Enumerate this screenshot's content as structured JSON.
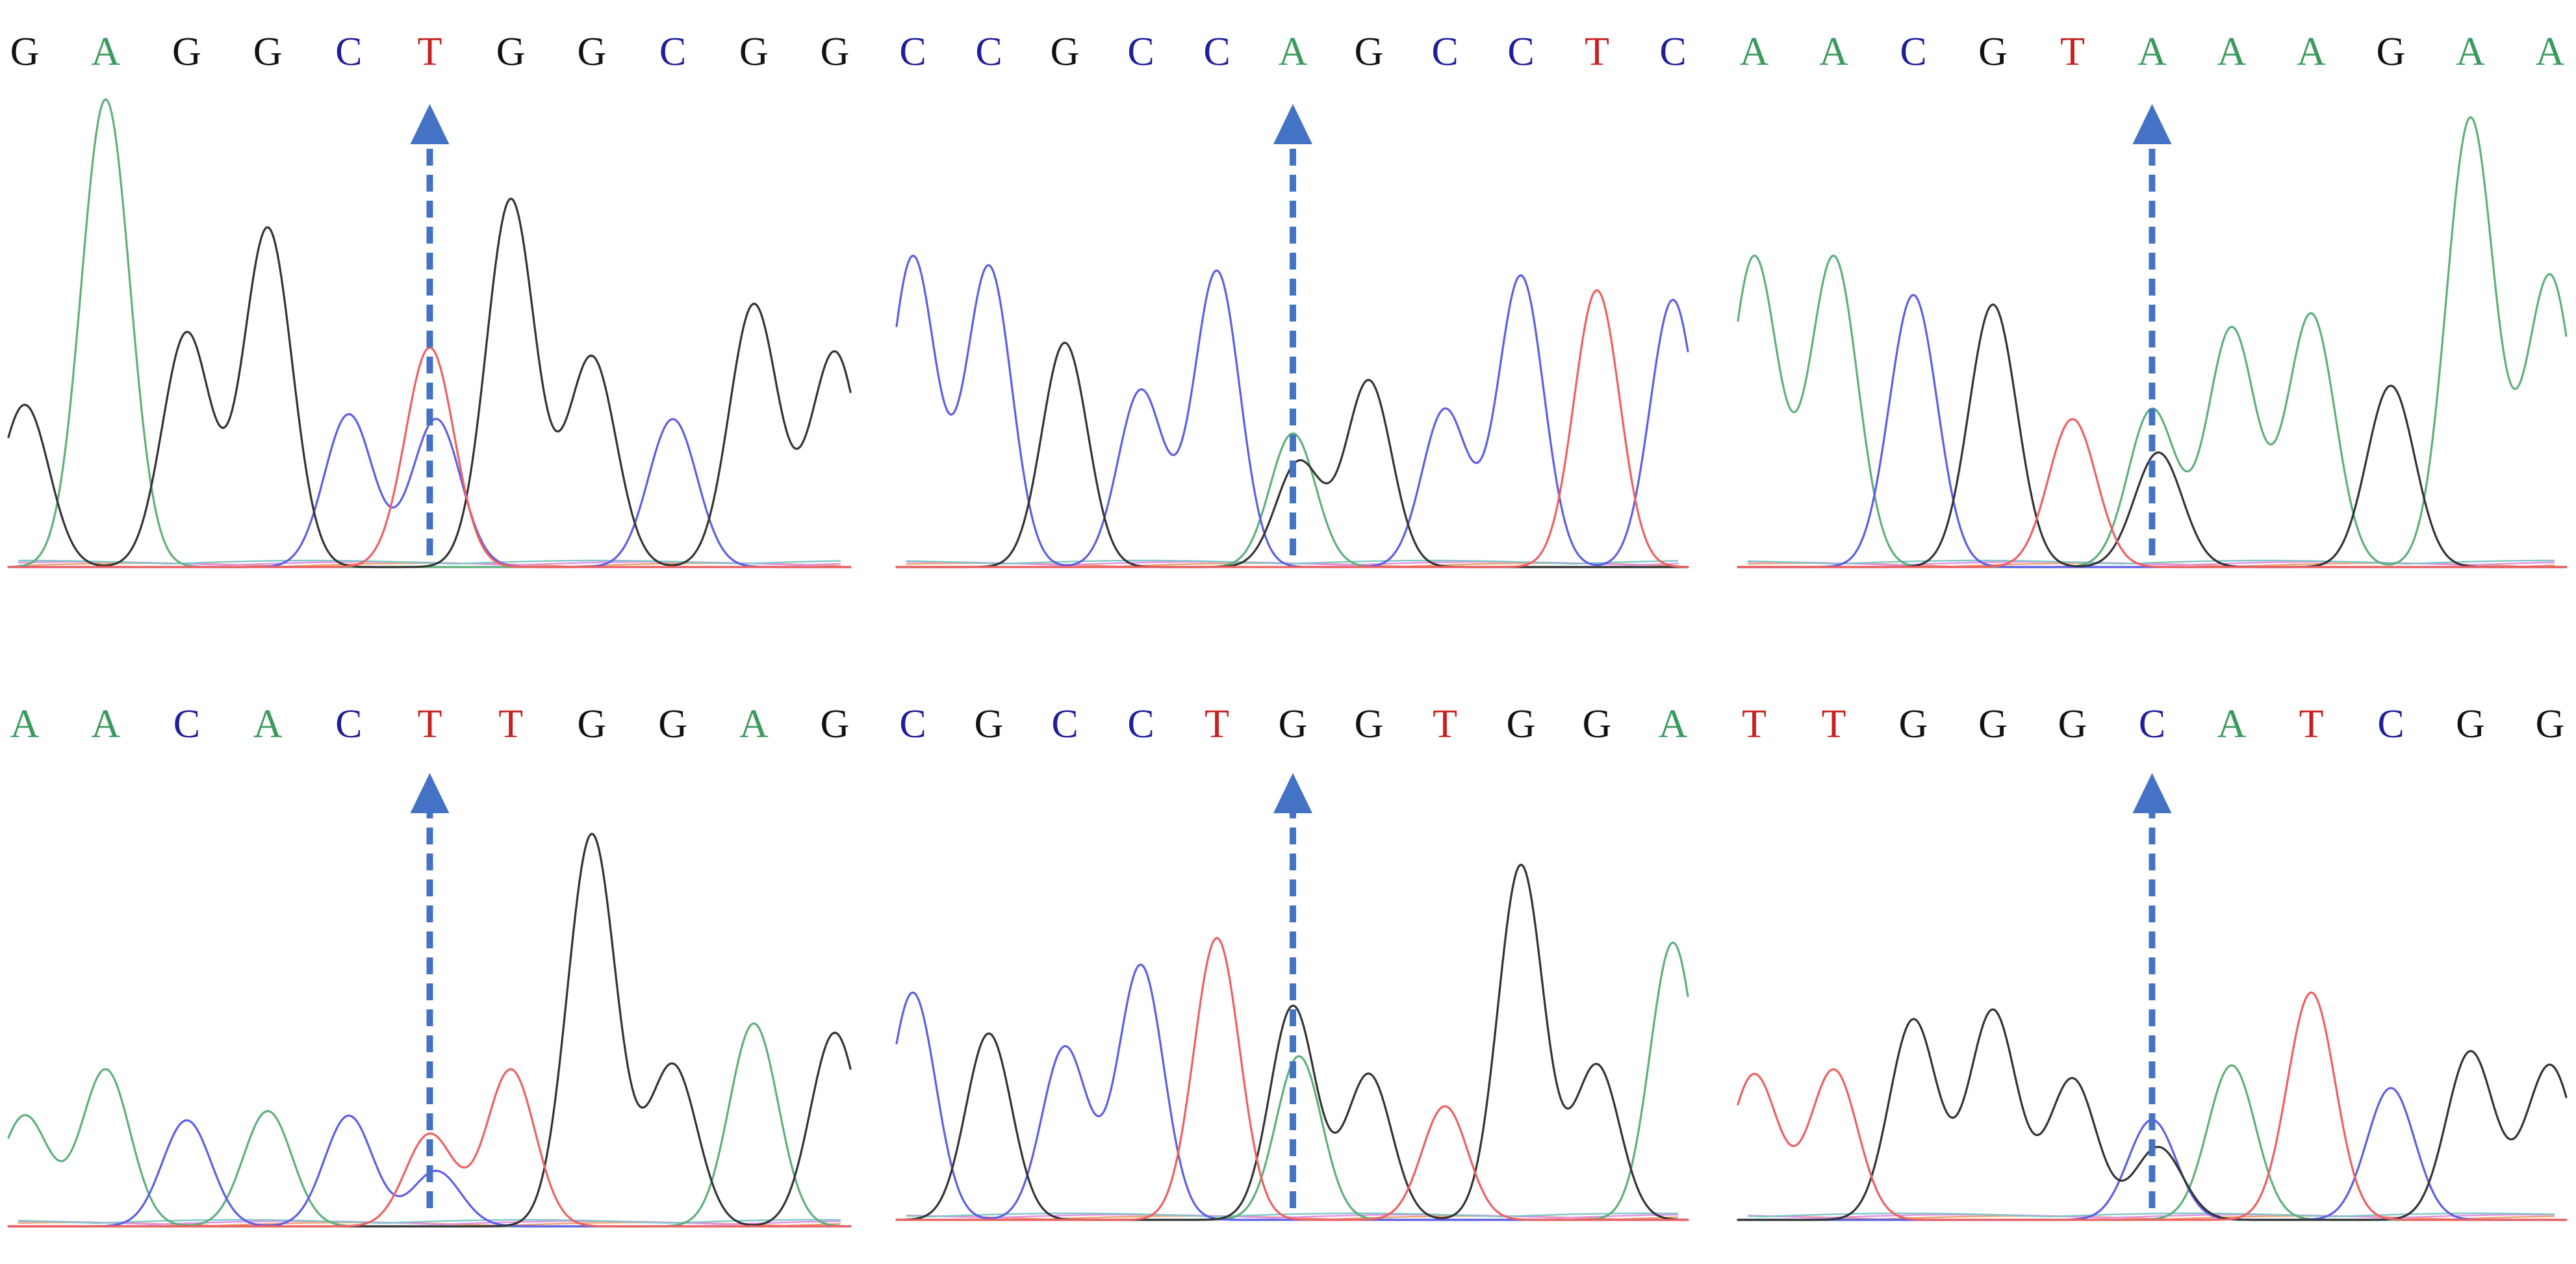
{
  "colors": {
    "A": "#3A9A5B",
    "C": "#1F1F99",
    "G": "#111111",
    "T": "#C82020",
    "trace_A": "#5FB07C",
    "trace_C": "#5E5EE6",
    "trace_G": "#333333",
    "trace_T": "#F06060",
    "noise_pink": "#E58FE5",
    "noise_orange": "#F0A070",
    "noise_teal": "#7FC8C8",
    "marker": "#4472C4"
  },
  "panels": [
    {
      "name": "panel-1",
      "bases": [
        "G",
        "A",
        "G",
        "G",
        "C",
        "T",
        "G",
        "G",
        "C",
        "G",
        "G"
      ],
      "marked_index": 5,
      "peaks": [
        [
          [
            "G",
            0.34
          ]
        ],
        [
          [
            "A",
            0.98
          ]
        ],
        [
          [
            "G",
            0.49
          ]
        ],
        [
          [
            "G",
            0.71
          ]
        ],
        [
          [
            "C",
            0.32
          ]
        ],
        [
          [
            "T",
            0.46
          ],
          [
            "C",
            0.31
          ]
        ],
        [
          [
            "G",
            0.77
          ]
        ],
        [
          [
            "G",
            0.44
          ]
        ],
        [
          [
            "C",
            0.31
          ]
        ],
        [
          [
            "G",
            0.55
          ]
        ],
        [
          [
            "G",
            0.45
          ]
        ]
      ]
    },
    {
      "name": "panel-2",
      "bases": [
        "C",
        "C",
        "G",
        "C",
        "C",
        "A",
        "G",
        "C",
        "C",
        "T",
        "C"
      ],
      "marked_index": 5,
      "peaks": [
        [
          [
            "C",
            0.65
          ]
        ],
        [
          [
            "C",
            0.63
          ]
        ],
        [
          [
            "G",
            0.47
          ]
        ],
        [
          [
            "C",
            0.37
          ]
        ],
        [
          [
            "C",
            0.62
          ]
        ],
        [
          [
            "A",
            0.28
          ],
          [
            "G",
            0.22
          ]
        ],
        [
          [
            "G",
            0.39
          ]
        ],
        [
          [
            "C",
            0.33
          ]
        ],
        [
          [
            "C",
            0.61
          ]
        ],
        [
          [
            "T",
            0.58
          ]
        ],
        [
          [
            "C",
            0.56
          ]
        ]
      ]
    },
    {
      "name": "panel-3",
      "bases": [
        "A",
        "A",
        "C",
        "G",
        "T",
        "A",
        "A",
        "A",
        "G",
        "A",
        "A"
      ],
      "marked_index": 5,
      "peaks": [
        [
          [
            "A",
            0.65
          ]
        ],
        [
          [
            "A",
            0.65
          ]
        ],
        [
          [
            "C",
            0.57
          ]
        ],
        [
          [
            "G",
            0.55
          ]
        ],
        [
          [
            "T",
            0.31
          ]
        ],
        [
          [
            "A",
            0.33
          ],
          [
            "G",
            0.24
          ]
        ],
        [
          [
            "A",
            0.5
          ]
        ],
        [
          [
            "A",
            0.53
          ]
        ],
        [
          [
            "G",
            0.38
          ]
        ],
        [
          [
            "A",
            0.94
          ]
        ],
        [
          [
            "A",
            0.61
          ]
        ]
      ]
    },
    {
      "name": "panel-4",
      "bases": [
        "A",
        "A",
        "C",
        "A",
        "C",
        "T",
        "T",
        "G",
        "G",
        "A",
        "G"
      ],
      "marked_index": 5,
      "peaks": [
        [
          [
            "A",
            0.24
          ]
        ],
        [
          [
            "A",
            0.34
          ]
        ],
        [
          [
            "C",
            0.23
          ]
        ],
        [
          [
            "A",
            0.25
          ]
        ],
        [
          [
            "C",
            0.24
          ]
        ],
        [
          [
            "T",
            0.2
          ],
          [
            "C",
            0.12
          ]
        ],
        [
          [
            "T",
            0.34
          ]
        ],
        [
          [
            "G",
            0.85
          ]
        ],
        [
          [
            "G",
            0.35
          ]
        ],
        [
          [
            "A",
            0.44
          ]
        ],
        [
          [
            "G",
            0.42
          ]
        ]
      ]
    },
    {
      "name": "panel-5",
      "bases": [
        "C",
        "G",
        "C",
        "C",
        "T",
        "G",
        "G",
        "T",
        "G",
        "G",
        "A"
      ],
      "marked_index": 5,
      "peaks": [
        [
          [
            "C",
            0.5
          ]
        ],
        [
          [
            "G",
            0.41
          ]
        ],
        [
          [
            "C",
            0.38
          ]
        ],
        [
          [
            "C",
            0.56
          ]
        ],
        [
          [
            "T",
            0.62
          ]
        ],
        [
          [
            "G",
            0.47
          ],
          [
            "A",
            0.36
          ]
        ],
        [
          [
            "G",
            0.32
          ]
        ],
        [
          [
            "T",
            0.25
          ]
        ],
        [
          [
            "G",
            0.78
          ]
        ],
        [
          [
            "G",
            0.34
          ]
        ],
        [
          [
            "A",
            0.61
          ]
        ]
      ]
    },
    {
      "name": "panel-6",
      "bases": [
        "T",
        "T",
        "G",
        "G",
        "G",
        "C",
        "A",
        "T",
        "C",
        "G",
        "G"
      ],
      "marked_index": 5,
      "peaks": [
        [
          [
            "T",
            0.32
          ]
        ],
        [
          [
            "T",
            0.33
          ]
        ],
        [
          [
            "G",
            0.44
          ]
        ],
        [
          [
            "G",
            0.46
          ]
        ],
        [
          [
            "G",
            0.31
          ]
        ],
        [
          [
            "C",
            0.22
          ],
          [
            "G",
            0.16
          ]
        ],
        [
          [
            "A",
            0.34
          ]
        ],
        [
          [
            "T",
            0.5
          ]
        ],
        [
          [
            "C",
            0.29
          ]
        ],
        [
          [
            "G",
            0.37
          ]
        ],
        [
          [
            "G",
            0.34
          ]
        ]
      ]
    }
  ]
}
